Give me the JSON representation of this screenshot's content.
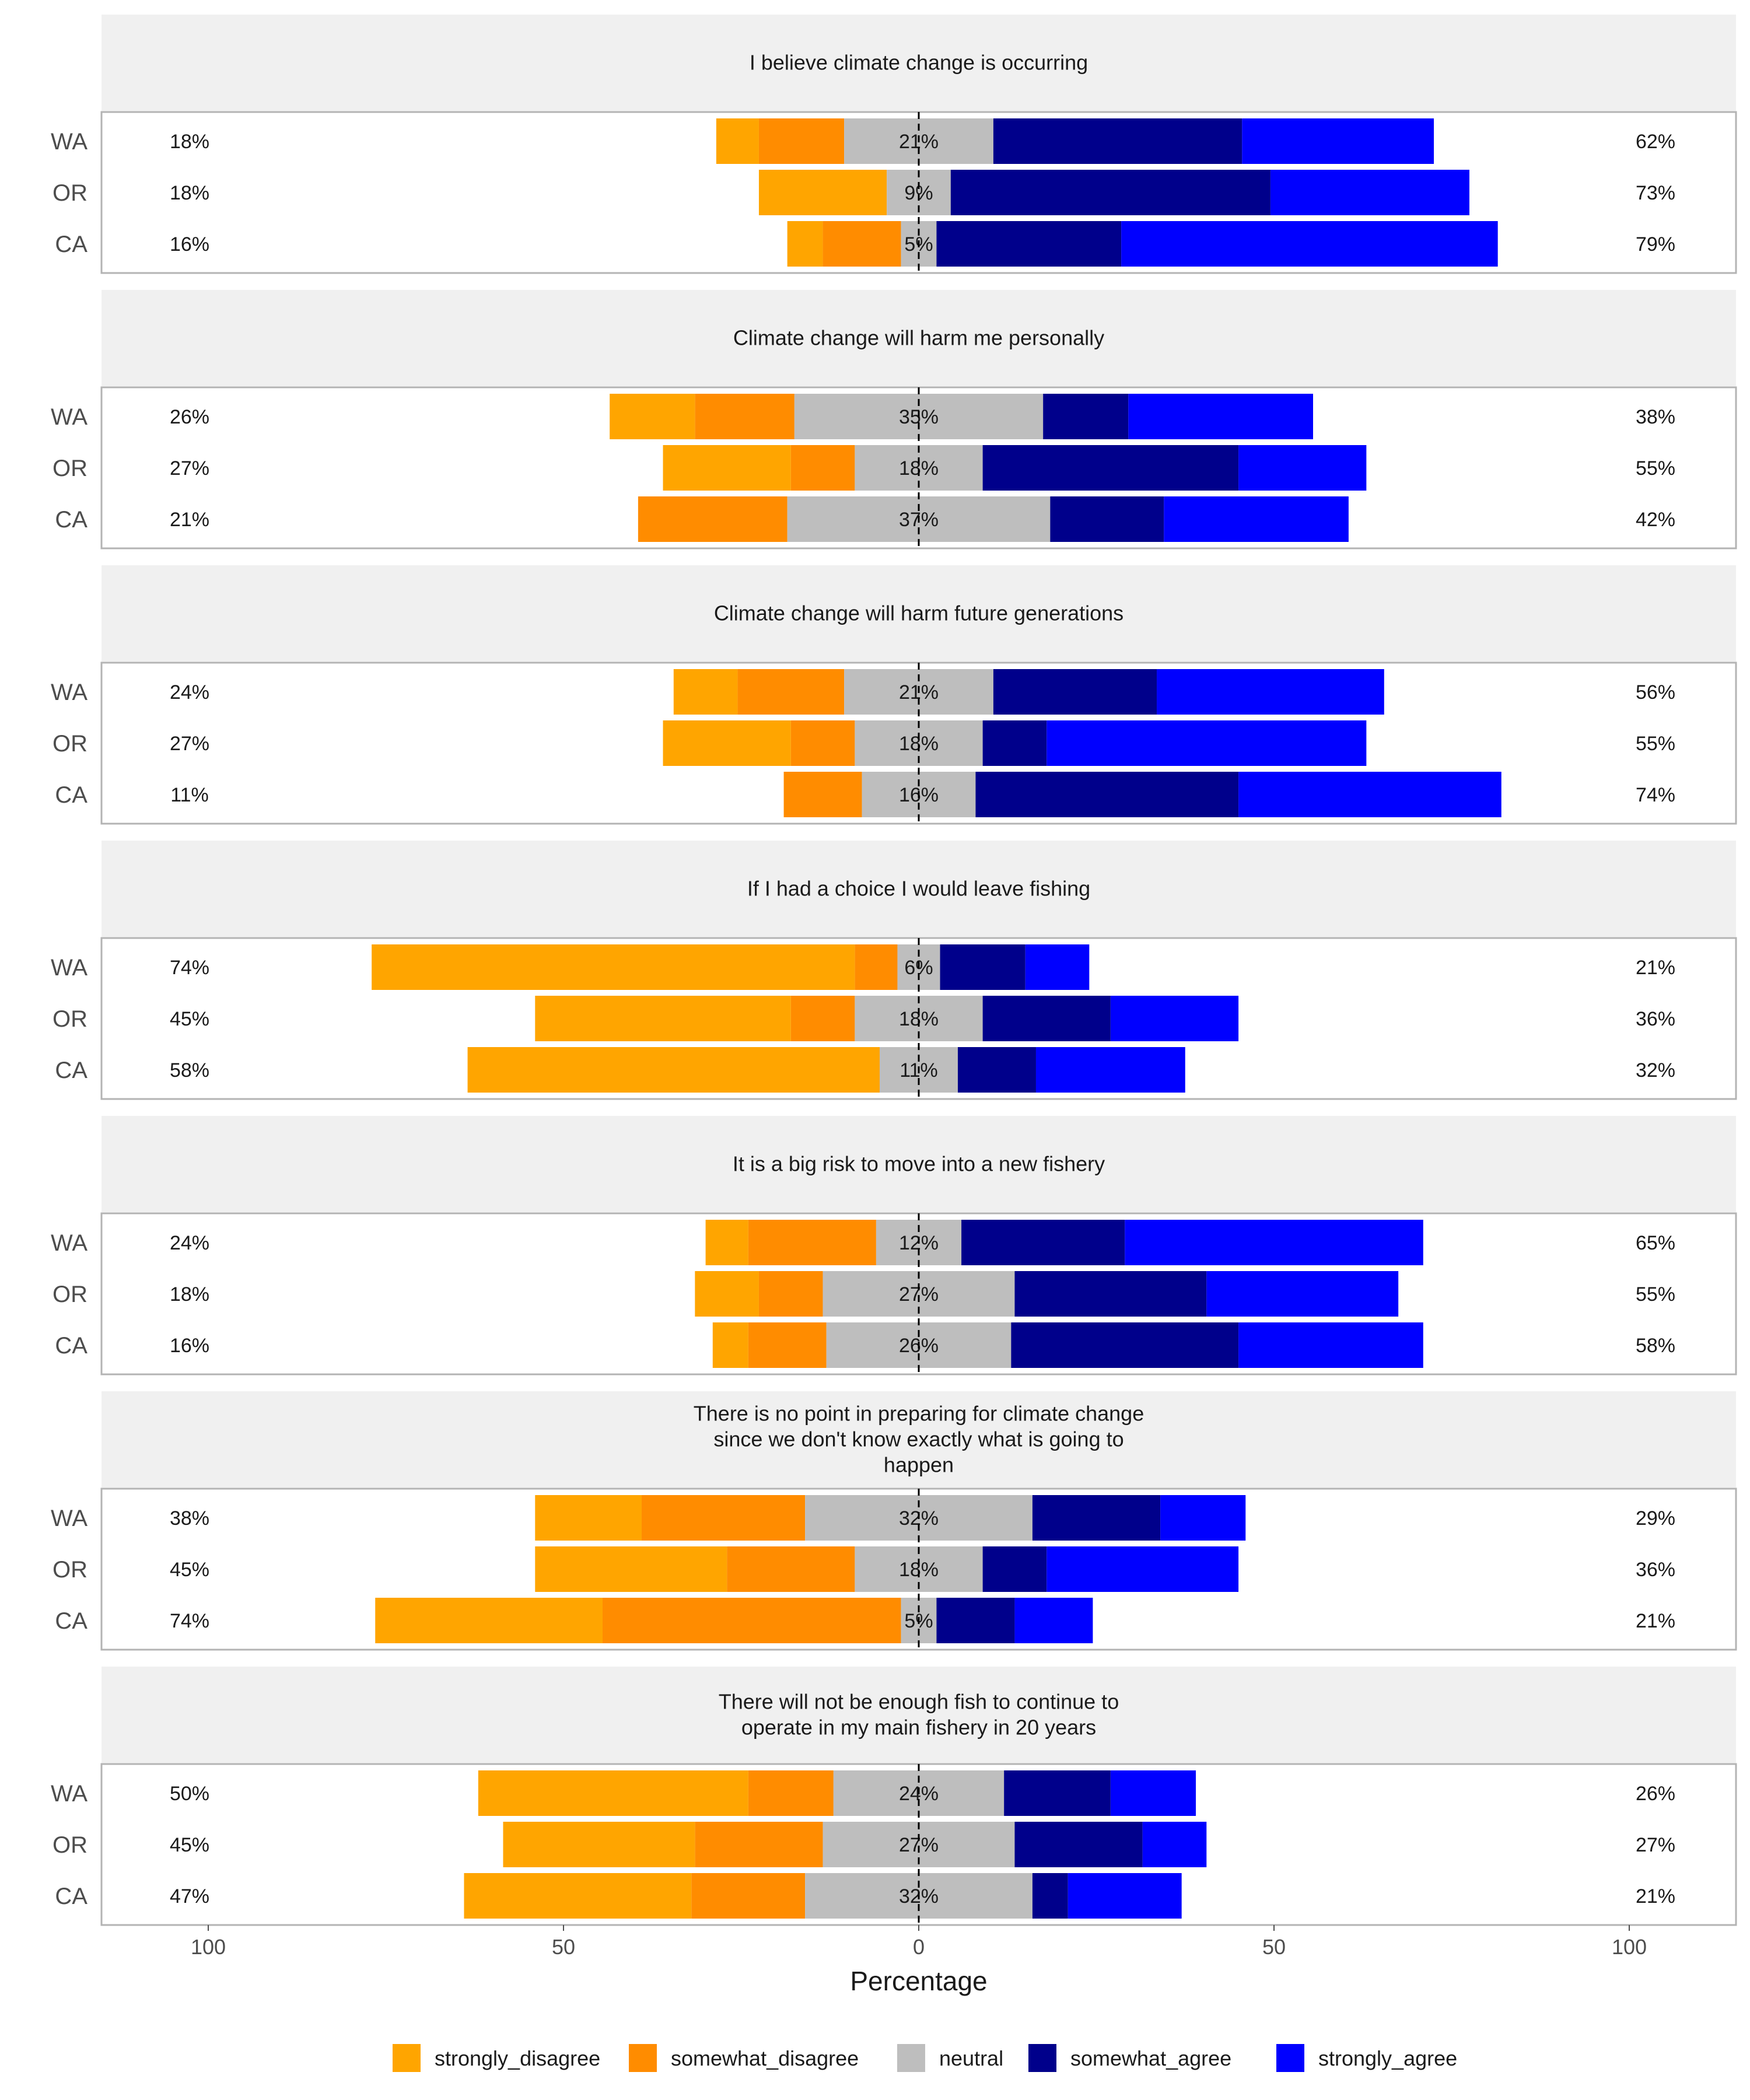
{
  "chart_data": {
    "type": "bar",
    "orientation": "horizontal",
    "stacking": "diverging",
    "xlabel": "Percentage",
    "xlim": [
      -110,
      110
    ],
    "x_ticks": [
      -100,
      -50,
      0,
      50,
      100
    ],
    "x_tick_labels": [
      "100",
      "50",
      "0",
      "50",
      "100"
    ],
    "legend_position": "bottom",
    "levels": [
      {
        "key": "strongly_disagree",
        "label": "strongly_disagree",
        "color": "#FFA500"
      },
      {
        "key": "somewhat_disagree",
        "label": "somewhat_disagree",
        "color": "#FF8C00"
      },
      {
        "key": "neutral",
        "label": "neutral",
        "color": "#BEBEBE"
      },
      {
        "key": "somewhat_agree",
        "label": "somewhat_agree",
        "color": "#00008B"
      },
      {
        "key": "strongly_agree",
        "label": "strongly_agree",
        "color": "#0000FF"
      }
    ],
    "panels": [
      {
        "title_lines": [
          "I believe climate change is occurring"
        ],
        "rows": [
          {
            "label": "WA",
            "values": [
              6,
              12,
              21,
              35,
              27
            ],
            "low": "18%",
            "neutral": "21%",
            "high": "62%"
          },
          {
            "label": "OR",
            "values": [
              18,
              0,
              9,
              45,
              28
            ],
            "low": "18%",
            "neutral": "9%",
            "high": "73%"
          },
          {
            "label": "CA",
            "values": [
              5,
              11,
              5,
              26,
              53
            ],
            "low": "16%",
            "neutral": "5%",
            "high": "79%"
          }
        ]
      },
      {
        "title_lines": [
          "Climate change will harm me personally"
        ],
        "rows": [
          {
            "label": "WA",
            "values": [
              12,
              14,
              35,
              12,
              26
            ],
            "low": "26%",
            "neutral": "35%",
            "high": "38%"
          },
          {
            "label": "OR",
            "values": [
              18,
              9,
              18,
              36,
              18
            ],
            "low": "27%",
            "neutral": "18%",
            "high": "55%"
          },
          {
            "label": "CA",
            "values": [
              0,
              21,
              37,
              16,
              26
            ],
            "low": "21%",
            "neutral": "37%",
            "high": "42%"
          }
        ]
      },
      {
        "title_lines": [
          "Climate change will harm future generations"
        ],
        "rows": [
          {
            "label": "WA",
            "values": [
              9,
              15,
              21,
              23,
              32
            ],
            "low": "24%",
            "neutral": "21%",
            "high": "56%"
          },
          {
            "label": "OR",
            "values": [
              18,
              9,
              18,
              9,
              45
            ],
            "low": "27%",
            "neutral": "18%",
            "high": "55%"
          },
          {
            "label": "CA",
            "values": [
              0,
              11,
              16,
              37,
              37
            ],
            "low": "11%",
            "neutral": "16%",
            "high": "74%"
          }
        ]
      },
      {
        "title_lines": [
          "If I had a choice I would leave fishing"
        ],
        "rows": [
          {
            "label": "WA",
            "values": [
              68,
              6,
              6,
              12,
              9
            ],
            "low": "74%",
            "neutral": "6%",
            "high": "21%"
          },
          {
            "label": "OR",
            "values": [
              36,
              9,
              18,
              18,
              18
            ],
            "low": "45%",
            "neutral": "18%",
            "high": "36%"
          },
          {
            "label": "CA",
            "values": [
              58,
              0,
              11,
              11,
              21
            ],
            "low": "58%",
            "neutral": "11%",
            "high": "32%"
          }
        ]
      },
      {
        "title_lines": [
          "It is a big risk to move into a new fishery"
        ],
        "rows": [
          {
            "label": "WA",
            "values": [
              6,
              18,
              12,
              23,
              42
            ],
            "low": "24%",
            "neutral": "12%",
            "high": "65%"
          },
          {
            "label": "OR",
            "values": [
              9,
              9,
              27,
              27,
              27
            ],
            "low": "18%",
            "neutral": "27%",
            "high": "55%"
          },
          {
            "label": "CA",
            "values": [
              5,
              11,
              26,
              32,
              26
            ],
            "low": "16%",
            "neutral": "26%",
            "high": "58%"
          }
        ]
      },
      {
        "title_lines": [
          "There is no point in preparing for climate change",
          "since we don't know exactly what is going to",
          "happen"
        ],
        "rows": [
          {
            "label": "WA",
            "values": [
              15,
              23,
              32,
              18,
              12
            ],
            "low": "38%",
            "neutral": "32%",
            "high": "29%"
          },
          {
            "label": "OR",
            "values": [
              27,
              18,
              18,
              9,
              27
            ],
            "low": "45%",
            "neutral": "18%",
            "high": "36%"
          },
          {
            "label": "CA",
            "values": [
              32,
              42,
              5,
              11,
              11
            ],
            "low": "74%",
            "neutral": "5%",
            "high": "21%"
          }
        ]
      },
      {
        "title_lines": [
          "There will not be enough fish to continue to",
          "operate in my main fishery in 20 years"
        ],
        "rows": [
          {
            "label": "WA",
            "values": [
              38,
              12,
              24,
              15,
              12
            ],
            "low": "50%",
            "neutral": "24%",
            "high": "26%"
          },
          {
            "label": "OR",
            "values": [
              27,
              18,
              27,
              18,
              9
            ],
            "low": "45%",
            "neutral": "27%",
            "high": "27%"
          },
          {
            "label": "CA",
            "values": [
              32,
              16,
              32,
              5,
              16
            ],
            "low": "47%",
            "neutral": "32%",
            "high": "21%"
          }
        ]
      }
    ]
  }
}
